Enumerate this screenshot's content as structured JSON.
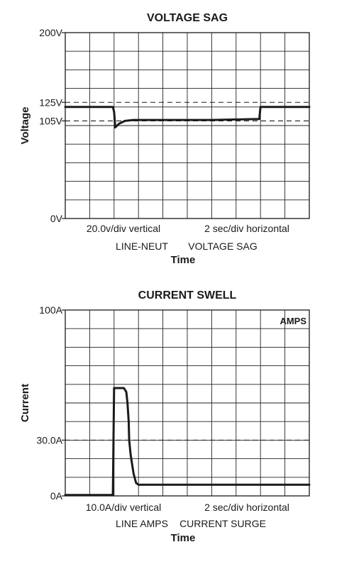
{
  "chart_data": [
    {
      "type": "line",
      "title": "VOLTAGE SAG",
      "xlabel": "Time",
      "ylabel": "Voltage",
      "ylim": [
        0,
        200
      ],
      "y_ticks": [
        {
          "value": 0,
          "label": "0V"
        },
        {
          "value": 105,
          "label": "105V"
        },
        {
          "value": 125,
          "label": "125V"
        },
        {
          "value": 200,
          "label": "200V"
        }
      ],
      "reference_lines": [
        105,
        125
      ],
      "x_divisions": 10,
      "y_divisions": 10,
      "grid": true,
      "scale_notes": {
        "vertical": "20.0v/div vertical",
        "horizontal": "2 sec/div horizontal"
      },
      "channel_notes": {
        "channel": "LINE-NEUT",
        "event": "VOLTAGE SAG"
      },
      "tag": "",
      "series": [
        {
          "x": [
            0,
            1.95,
            2.0,
            2.05,
            2.2,
            2.45,
            2.8,
            3.5,
            6,
            7.95,
            8.0,
            10
          ],
          "values": [
            120,
            120,
            115,
            98,
            102,
            105,
            106,
            106,
            106,
            107,
            120,
            120
          ]
        }
      ]
    },
    {
      "type": "line",
      "title": "CURRENT SWELL",
      "xlabel": "Time",
      "ylabel": "Current",
      "ylim": [
        0,
        100
      ],
      "y_ticks": [
        {
          "value": 0,
          "label": "0A"
        },
        {
          "value": 30,
          "label": "30.0A"
        },
        {
          "value": 100,
          "label": "100A"
        }
      ],
      "reference_lines": [
        30
      ],
      "x_divisions": 10,
      "y_divisions": 10,
      "grid": true,
      "scale_notes": {
        "vertical": "10.0A/div vertical",
        "horizontal": "2 sec/div horizontal"
      },
      "channel_notes": {
        "channel": "LINE AMPS",
        "event": "CURRENT SURGE"
      },
      "tag": "AMPS",
      "series": [
        {
          "x": [
            0,
            1.95,
            2.0,
            2.4,
            2.5,
            2.55,
            2.6,
            2.62,
            2.68,
            2.8,
            2.9,
            3.0,
            10
          ],
          "values": [
            0.5,
            0.5,
            58,
            58,
            56,
            50,
            40,
            30,
            22,
            12,
            7,
            6,
            6
          ]
        }
      ]
    }
  ]
}
